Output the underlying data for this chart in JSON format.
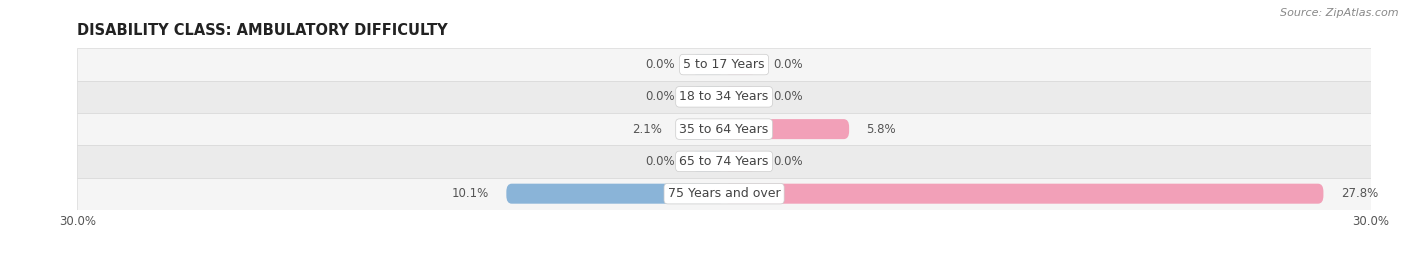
{
  "title": "DISABILITY CLASS: AMBULATORY DIFFICULTY",
  "source": "Source: ZipAtlas.com",
  "categories": [
    "5 to 17 Years",
    "18 to 34 Years",
    "35 to 64 Years",
    "65 to 74 Years",
    "75 Years and over"
  ],
  "male_values": [
    0.0,
    0.0,
    2.1,
    0.0,
    10.1
  ],
  "female_values": [
    0.0,
    0.0,
    5.8,
    0.0,
    27.8
  ],
  "male_color": "#8ab4d8",
  "female_color": "#f2a0b8",
  "row_bg_light": "#f5f5f5",
  "row_bg_dark": "#ebebeb",
  "row_border_color": "#d8d8d8",
  "xlim": 30.0,
  "min_bar_val": 1.5,
  "title_fontsize": 10.5,
  "label_fontsize": 8.5,
  "cat_fontsize": 9.0,
  "tick_fontsize": 8.5,
  "source_fontsize": 8,
  "bar_height": 0.62,
  "background_color": "#ffffff",
  "text_color": "#444444",
  "value_color": "#555555"
}
